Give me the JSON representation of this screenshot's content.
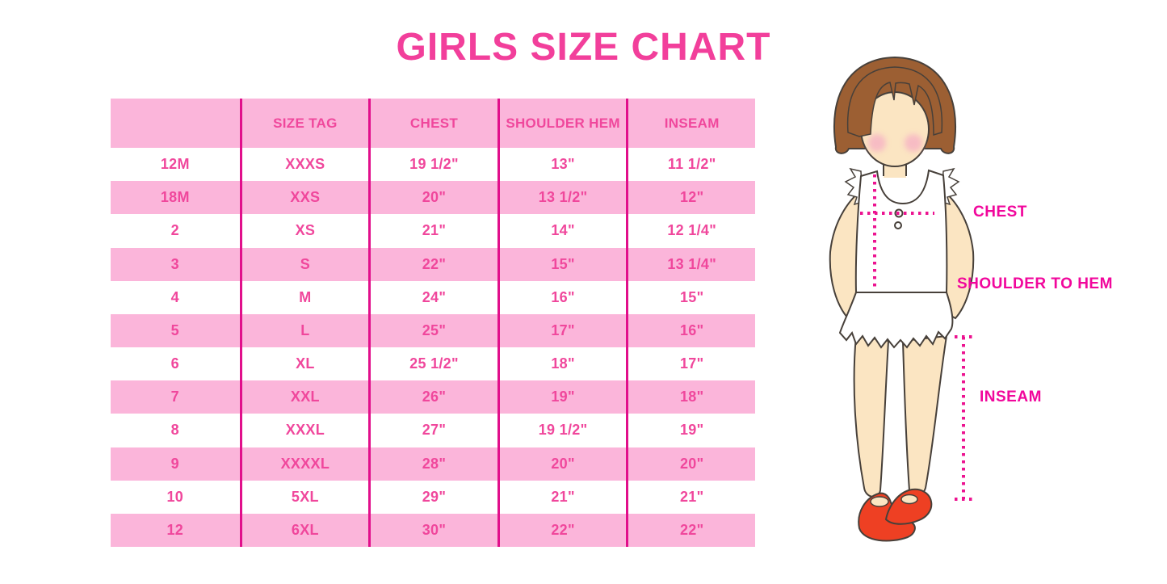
{
  "title": "GIRLS SIZE CHART",
  "table": {
    "headers": [
      "",
      "SIZE TAG",
      "CHEST",
      "SHOULDER HEM",
      "INSEAM"
    ],
    "rows": [
      [
        "12M",
        "XXXS",
        "19 1/2\"",
        "13\"",
        "11 1/2\""
      ],
      [
        "18M",
        "XXS",
        "20\"",
        "13 1/2\"",
        "12\""
      ],
      [
        "2",
        "XS",
        "21\"",
        "14\"",
        "12 1/4\""
      ],
      [
        "3",
        "S",
        "22\"",
        "15\"",
        "13 1/4\""
      ],
      [
        "4",
        "M",
        "24\"",
        "16\"",
        "15\""
      ],
      [
        "5",
        "L",
        "25\"",
        "17\"",
        "16\""
      ],
      [
        "6",
        "XL",
        "25 1/2\"",
        "18\"",
        "17\""
      ],
      [
        "7",
        "XXL",
        "26\"",
        "19\"",
        "18\""
      ],
      [
        "8",
        "XXXL",
        "27\"",
        "19 1/2\"",
        "19\""
      ],
      [
        "9",
        "XXXXL",
        "28\"",
        "20\"",
        "20\""
      ],
      [
        "10",
        "5XL",
        "29\"",
        "21\"",
        "21\""
      ],
      [
        "12",
        "6XL",
        "30\"",
        "22\"",
        "22\""
      ]
    ]
  },
  "figure": {
    "labels": {
      "chest": "CHEST",
      "shoulder_to_hem": "SHOULDER TO HEM",
      "inseam": "INSEAM"
    }
  },
  "colors": {
    "title_text": "#F23F9B",
    "table_text": "#F0479C",
    "row_pink": "#FBB5DA",
    "divider_line": "#E10F8B",
    "label_text": "#F1079C",
    "dotted_line": "#EC1390",
    "hair": "#9C5F33",
    "skin": "#FBE5C2",
    "cheek": "#F6AFC4",
    "shoe": "#EE4023"
  }
}
